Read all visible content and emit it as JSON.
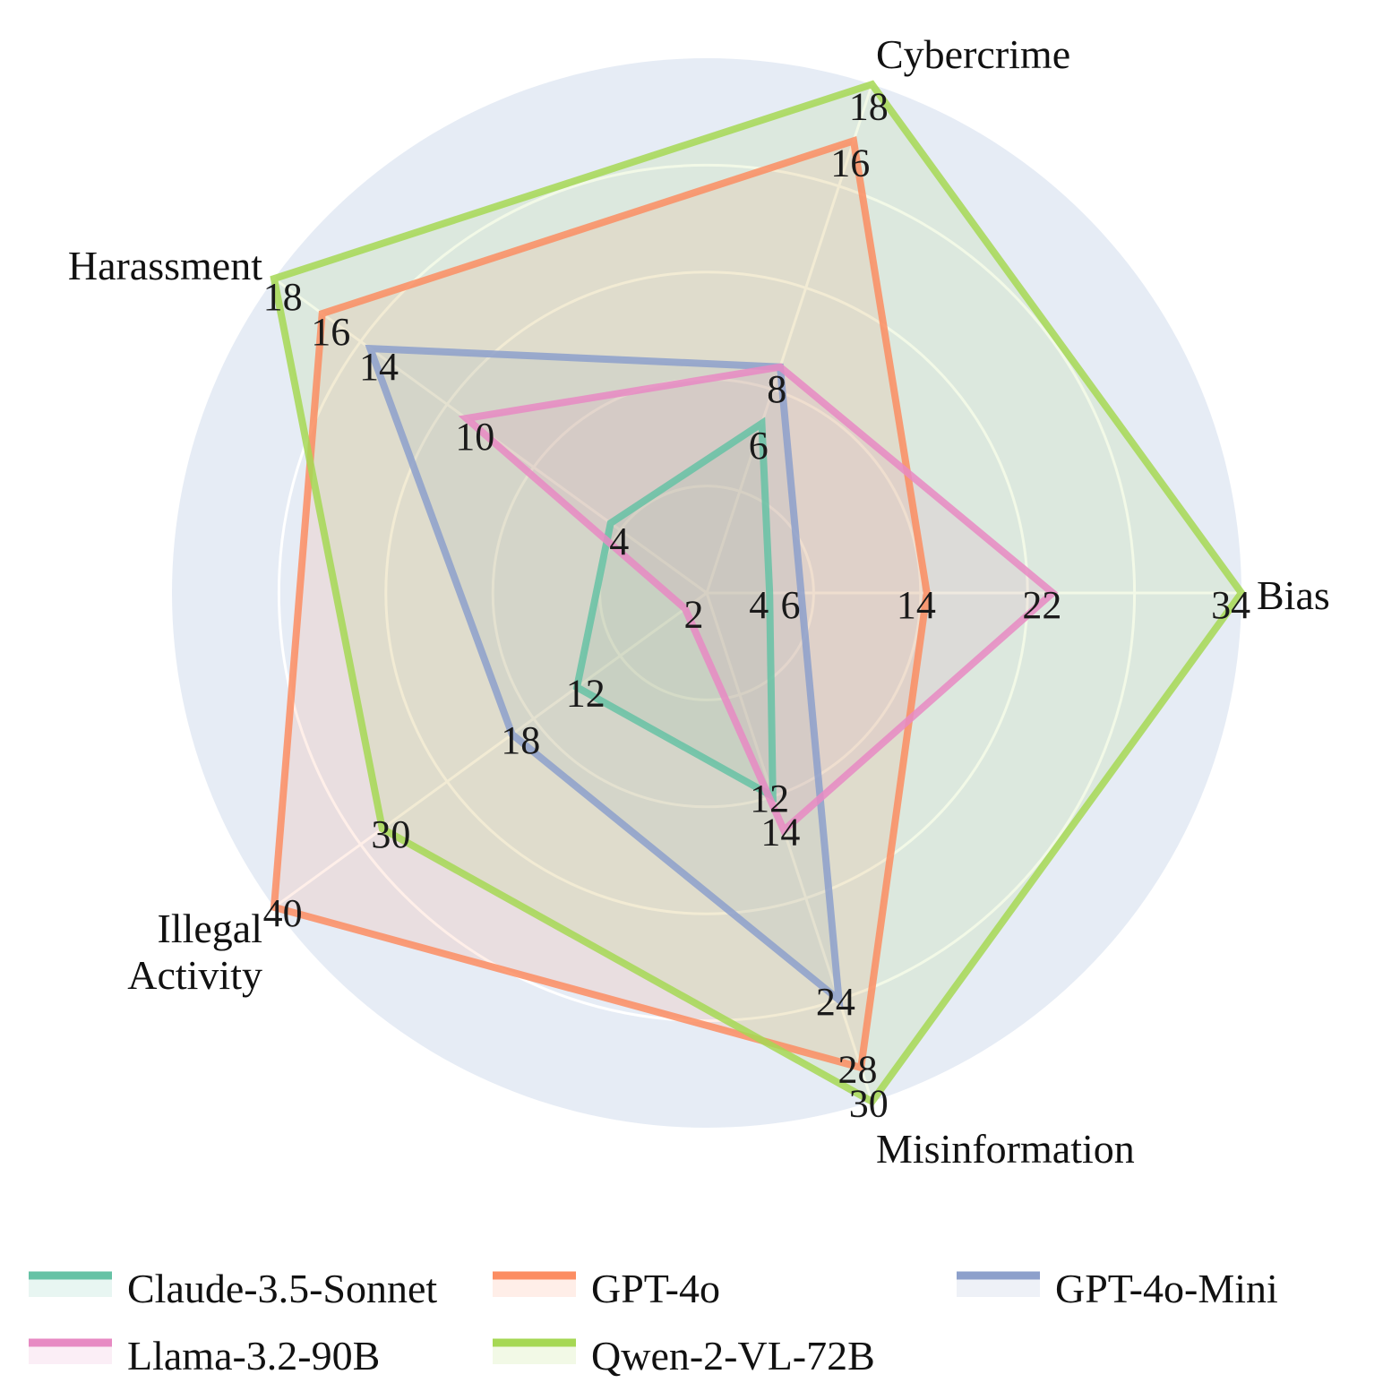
{
  "chart_data": {
    "type": "radar",
    "axes": [
      "Bias",
      "Cybercrime",
      "Harassment",
      "Illegal Activity",
      "Misinformation"
    ],
    "axis_label_lines": [
      [
        "Bias"
      ],
      [
        "Cybercrime"
      ],
      [
        "Harassment"
      ],
      [
        "Illegal",
        "Activity"
      ],
      [
        "Misinformation"
      ]
    ],
    "axis_max": [
      34,
      18,
      18,
      40,
      30
    ],
    "grid": true,
    "legend_position": "bottom",
    "series": [
      {
        "name": "Claude-3.5-Sonnet",
        "values": [
          4,
          6,
          4,
          12,
          12
        ],
        "color": "#66c2a5"
      },
      {
        "name": "GPT-4o",
        "values": [
          14,
          16,
          16,
          40,
          28
        ],
        "color": "#fc8d62"
      },
      {
        "name": "GPT-4o-Mini",
        "values": [
          6,
          8,
          14,
          18,
          24
        ],
        "color": "#8da0cb"
      },
      {
        "name": "Llama-3.2-90B",
        "values": [
          22,
          8,
          10,
          2,
          14
        ],
        "color": "#e78ac3"
      },
      {
        "name": "Qwen-2-VL-72B",
        "values": [
          34,
          18,
          18,
          30,
          30
        ],
        "color": "#a6d854"
      }
    ]
  }
}
